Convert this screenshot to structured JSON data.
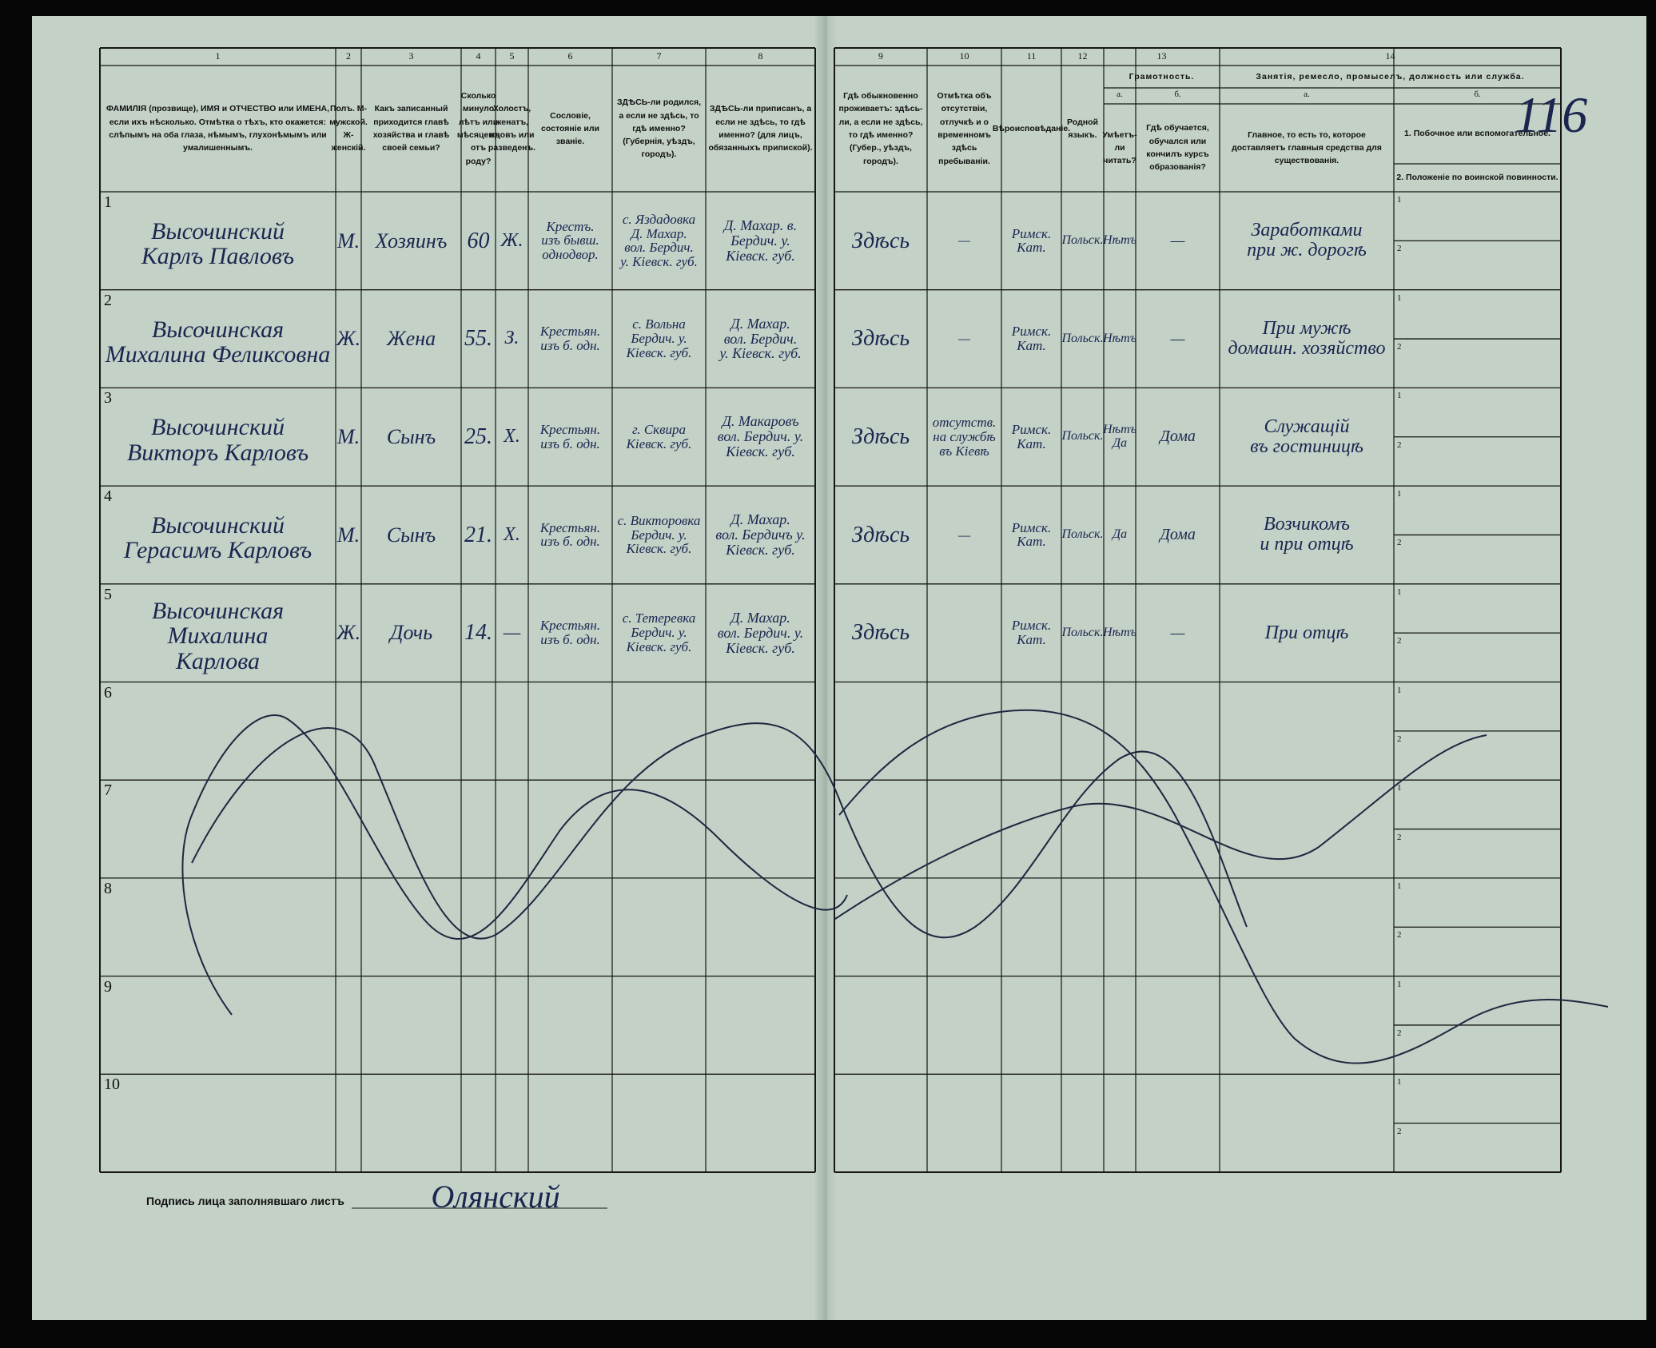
{
  "page_number": "116",
  "columns": [
    {
      "number": "1",
      "title": "ФАМИЛІЯ (прозвище), ИМЯ и ОТЧЕСТВО или ИМЕНА, если ихъ нѣсколько. Отмѣтка о тѣхъ, кто окажется: слѣпымъ на оба глаза, нѣмымъ, глухонѣмымъ или умалишеннымъ."
    },
    {
      "number": "2",
      "title": "Полъ. М-мужской. Ж-женскій."
    },
    {
      "number": "3",
      "title": "Какъ записанный приходится главѣ хозяйства и главѣ своей семьи?"
    },
    {
      "number": "4",
      "title": "Сколько минуло лѣтъ или мѣсяцевъ отъ роду?"
    },
    {
      "number": "5",
      "title": "Холостъ, женатъ, вдовъ или разведенъ."
    },
    {
      "number": "6",
      "title": "Сословіе, состояніе или званіе."
    },
    {
      "number": "7",
      "title": "ЗДѢСЬ-ли родился, а если не здѣсь, то гдѣ именно? (Губернія, уѣздъ, городъ)."
    },
    {
      "number": "8",
      "title": "ЗДѢСЬ-ли приписанъ, а если не здѣсь, то гдѣ именно? (для лицъ, обязанныхъ припиской)."
    },
    {
      "number": "9",
      "title": "Гдѣ обыкновенно проживаетъ: здѣсь-ли, а если не здѣсь, то гдѣ именно? (Губер., уѣздъ, городъ)."
    },
    {
      "number": "10",
      "title": "Отмѣтка объ отсутствіи, отлучкѣ и о временномъ здѣсь пребываніи."
    },
    {
      "number": "11",
      "title": "Вѣроисповѣданіе."
    },
    {
      "number": "12",
      "title": "Родной языкъ."
    },
    {
      "number": "13",
      "title": "Грамотность.",
      "sub": [
        {
          "label": "а.",
          "title": "Умѣетъ-ли читать?"
        },
        {
          "label": "б.",
          "title": "Гдѣ обучается, обучался или кончилъ курсъ образованія?"
        }
      ]
    },
    {
      "number": "14",
      "title": "Занятія, ремесло, промыселъ, должность или служба.",
      "sub": [
        {
          "label": "а.",
          "title": "Главное, то есть то, которое доставляетъ главныя средства для существованія."
        },
        {
          "label": "б.",
          "title": "1. Побочное или вспомогательное.",
          "title2": "2. Положеніе по воинской повинности."
        }
      ]
    }
  ],
  "rows": [
    {
      "number": "1",
      "name": "Высочинский\nКарлъ Павловъ",
      "sex": "М.",
      "relation": "Хозяинъ",
      "age": "60",
      "marital": "Ж.",
      "estate": "Крестъ.\nизъ бывш.\nоднодвор.",
      "birthplace": "с. Яздадовка\nД. Махар.\nвол. Бердич.\nу. Кіевск. губ.",
      "registration": "Д. Махар. в.\nБердич. у.\nКіевск. губ.",
      "residence": "Здѣсь",
      "absence": "—",
      "religion": "Римск.\nКат.",
      "language": "Польск.",
      "literacy": "Нѣтъ",
      "education": "—",
      "occupation": "Заработками\nпри ж. дорогѣ"
    },
    {
      "number": "2",
      "name": "Высочинская\nМихалина Феликсовна",
      "sex": "Ж.",
      "relation": "Жена",
      "age": "55.",
      "marital": "З.",
      "estate": "Крестьян.\nизъ б. одн.",
      "birthplace": "с. Вольна\nБердич. у.\nКіевск. губ.",
      "registration": "Д. Махар.\nвол. Бердич.\nу. Кіевск. губ.",
      "residence": "Здѣсь",
      "absence": "—",
      "religion": "Римск.\nКат.",
      "language": "Польск.",
      "literacy": "Нѣтъ",
      "education": "—",
      "occupation": "При мужѣ\nдомашн. хозяйство"
    },
    {
      "number": "3",
      "name": "Высочинский\nВикторъ Карловъ",
      "sex": "М.",
      "relation": "Сынъ",
      "age": "25.",
      "marital": "Х.",
      "estate": "Крестьян.\nизъ б. одн.",
      "birthplace": "г. Сквира\nКіевск. губ.",
      "registration": "Д. Макаровъ\nвол. Бердич. у.\nКіевск. губ.",
      "residence": "Здѣсь",
      "absence": "отсутств.\nна службѣ\nвъ Кіевѣ",
      "religion": "Римск.\nКат.",
      "language": "Польск.",
      "literacy": "Нѣтъ\nДа",
      "education": "Дома",
      "occupation": "Служащій\nвъ гостиницѣ"
    },
    {
      "number": "4",
      "name": "Высочинский\nГерасимъ Карловъ",
      "sex": "М.",
      "relation": "Сынъ",
      "age": "21.",
      "marital": "Х.",
      "estate": "Крестьян.\nизъ б. одн.",
      "birthplace": "с. Викторовка\nБердич. у.\nКіевск. губ.",
      "registration": "Д. Махар.\nвол. Бердичъ у.\nКіевск. губ.",
      "residence": "Здѣсь",
      "absence": "—",
      "religion": "Римск.\nКат.",
      "language": "Польск.",
      "literacy": "Да",
      "education": "Дома",
      "occupation": "Возчикомъ\nи при отцѣ"
    },
    {
      "number": "5",
      "name": "Высочинская\nМихалина\nКарлова",
      "sex": "Ж.",
      "relation": "Дочь",
      "age": "14.",
      "marital": "—",
      "estate": "Крестьян.\nизъ б. одн.",
      "birthplace": "с. Тетеревка\nБердич. у.\nКіевск. губ.",
      "registration": "Д. Махар.\nвол. Бердич. у.\nКіевск. губ.",
      "residence": "Здѣсь",
      "religion": "Римск.\nКат.",
      "language": "Польск.",
      "literacy": "Нѣтъ",
      "education": "—",
      "occupation": "При отцѣ"
    },
    {
      "number": "6"
    },
    {
      "number": "7"
    },
    {
      "number": "8"
    },
    {
      "number": "9"
    },
    {
      "number": "10"
    }
  ],
  "subline_numbers": [
    "1",
    "2"
  ],
  "signature": {
    "label": "Подпись лица заполнявшаго листъ",
    "value": "Олянский"
  }
}
